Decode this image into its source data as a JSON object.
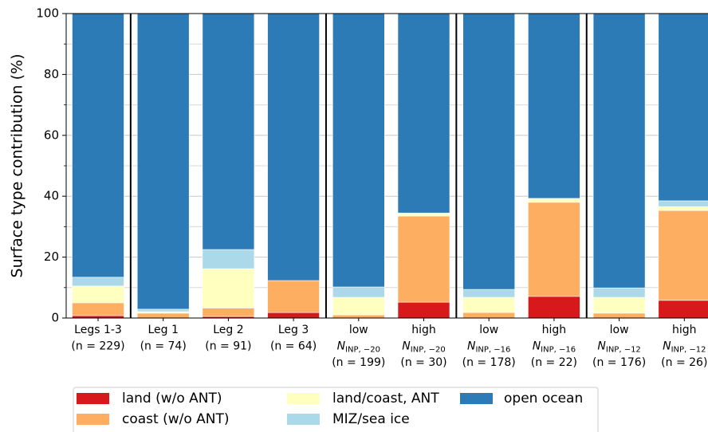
{
  "chart_data": {
    "type": "stacked_bar",
    "ylabel": "Surface type contribution (%)",
    "categories": [
      [
        "Legs 1-3",
        "(n = 229)"
      ],
      [
        "Leg 1",
        "(n = 74)"
      ],
      [
        "Leg 2",
        "(n = 91)"
      ],
      [
        "Leg 3",
        "(n = 64)"
      ],
      [
        "low",
        {
          "symbol": "N",
          "subscript": "INP, −20"
        },
        "(n = 199)"
      ],
      [
        "high",
        {
          "symbol": "N",
          "subscript": "INP, −20"
        },
        "(n = 30)"
      ],
      [
        "low",
        {
          "symbol": "N",
          "subscript": "INP, −16"
        },
        "(n = 178)"
      ],
      [
        "high",
        {
          "symbol": "N",
          "subscript": "INP, −16"
        },
        "(n = 22)"
      ],
      [
        "low",
        {
          "symbol": "N",
          "subscript": "INP, −12"
        },
        "(n = 176)"
      ],
      [
        "high",
        {
          "symbol": "N",
          "subscript": "INP, −12"
        },
        "(n = 26)"
      ]
    ],
    "series": [
      {
        "name": "land (w/o ANT)",
        "color": "#d7191c",
        "values": [
          0.8,
          0,
          0.5,
          1.8,
          0,
          5.2,
          0,
          7.1,
          0,
          5.8
        ]
      },
      {
        "name": "coast (w/o ANT)",
        "color": "#fdae61",
        "values": [
          4.2,
          1.6,
          2.8,
          10.5,
          1.0,
          28.3,
          1.8,
          30.9,
          1.6,
          29.5
        ]
      },
      {
        "name": "land/coast, ANT",
        "color": "#ffffbf",
        "values": [
          5.5,
          0.5,
          12.9,
          0,
          5.8,
          1.0,
          5.0,
          1.3,
          5.2,
          1.3
        ]
      },
      {
        "name": "MIZ/sea ice",
        "color": "#abd9e9",
        "values": [
          2.9,
          0.8,
          6.3,
          0,
          3.4,
          0,
          2.6,
          0,
          3.1,
          1.9
        ]
      },
      {
        "name": "open ocean",
        "color": "#2c7bb6",
        "values": [
          86.6,
          97.1,
          77.5,
          87.7,
          89.8,
          65.5,
          90.6,
          60.7,
          90.1,
          61.5
        ]
      }
    ],
    "ylim": [
      0,
      100
    ],
    "yticks": [
      0,
      20,
      40,
      60,
      80,
      100
    ],
    "minor_yticks": [
      10,
      30,
      50,
      70,
      90
    ],
    "grid": true,
    "legend_position": "bottom"
  }
}
